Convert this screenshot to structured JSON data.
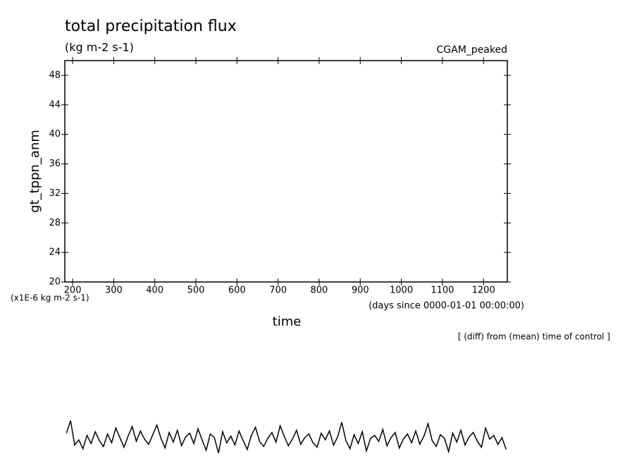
{
  "chart_data": {
    "type": "line",
    "title": "total precipitation flux",
    "subtitle": "(kg m-2 s-1)",
    "annotation_right": "CGAM_peaked",
    "y_label": "gt_tppn_anm",
    "y_unit": "(x1E-6 kg m-2 s-1)",
    "x_label": "time",
    "x_unit": "(days since 0000-01-01 00:00:00)",
    "note": "[ (diff) from (mean) time of control ]",
    "xlim": [
      181,
      1258
    ],
    "ylim": [
      20,
      50
    ],
    "xticks": [
      200,
      300,
      400,
      500,
      600,
      700,
      800,
      900,
      1000,
      1100,
      1200
    ],
    "yticks": [
      20,
      24,
      28,
      32,
      36,
      40,
      44,
      48
    ],
    "x": [
      185,
      195,
      205,
      215,
      225,
      235,
      245,
      255,
      265,
      275,
      285,
      295,
      305,
      315,
      325,
      335,
      345,
      355,
      365,
      375,
      385,
      395,
      405,
      415,
      425,
      435,
      445,
      455,
      465,
      475,
      485,
      495,
      505,
      515,
      525,
      535,
      545,
      555,
      565,
      575,
      585,
      595,
      605,
      615,
      625,
      635,
      645,
      655,
      665,
      675,
      685,
      695,
      705,
      715,
      725,
      735,
      745,
      755,
      765,
      775,
      785,
      795,
      805,
      815,
      825,
      835,
      845,
      855,
      865,
      875,
      885,
      895,
      905,
      915,
      925,
      935,
      945,
      955,
      965,
      975,
      985,
      995,
      1005,
      1015,
      1025,
      1035,
      1045,
      1055,
      1065,
      1075,
      1085,
      1095,
      1105,
      1115,
      1125,
      1135,
      1145,
      1155,
      1165,
      1175,
      1185,
      1195,
      1205,
      1215,
      1225,
      1235,
      1245,
      1255
    ],
    "series": [
      {
        "color": "#000000",
        "values": [
          -0.5,
          1.2,
          -2.1,
          -1.4,
          -2.6,
          -0.8,
          -1.9,
          -0.3,
          -1.5,
          -2.3,
          -0.6,
          -1.8,
          0.2,
          -1.1,
          -2.4,
          -0.9,
          0.4,
          -1.6,
          -0.2,
          -1.3,
          -2.0,
          -0.7,
          0.6,
          -1.2,
          -2.5,
          -0.4,
          -1.7,
          -0.1,
          -2.2,
          -1.0,
          -0.5,
          -1.9,
          0.1,
          -1.4,
          -2.8,
          -0.6,
          -1.1,
          -3.2,
          -0.3,
          -1.8,
          -0.9,
          -2.1,
          -0.2,
          -1.5,
          -2.7,
          -0.8,
          0.3,
          -1.6,
          -2.3,
          -1.2,
          -0.4,
          -1.7,
          0.5,
          -0.9,
          -2.2,
          -1.3,
          -0.1,
          -2.0,
          -1.1,
          -0.6,
          -1.8,
          -2.4,
          -0.5,
          -1.4,
          -0.2,
          -2.1,
          -1.0,
          1.0,
          -1.5,
          -2.6,
          -0.7,
          -1.9,
          -0.3,
          -2.9,
          -1.2,
          -0.8,
          -1.6,
          0.0,
          -2.2,
          -1.1,
          -0.4,
          -2.5,
          -1.3,
          -0.6,
          -1.8,
          -0.2,
          -2.0,
          -0.9,
          0.8,
          -1.5,
          -2.3,
          -0.7,
          -1.2,
          -3.0,
          -0.5,
          -1.7,
          -0.1,
          -2.1,
          -1.0,
          -0.4,
          -1.6,
          -2.4,
          0.2,
          -1.3,
          -0.8,
          -2.0,
          -1.1,
          -2.7
        ]
      }
    ]
  }
}
